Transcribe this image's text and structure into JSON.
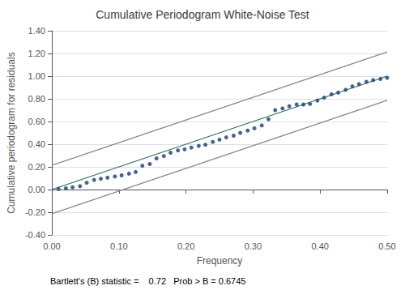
{
  "chart_data": {
    "type": "scatter",
    "title": "Cumulative Periodogram White-Noise Test",
    "xlabel": "Frequency",
    "ylabel": "Cumulative periodogram for residuals",
    "annotation": "Bartlett's (B) statistic =    0.72   Prob > B = 0.6745",
    "xlim": [
      0,
      0.5
    ],
    "ylim": [
      -0.4,
      1.4
    ],
    "xticks": [
      {
        "value": 0,
        "label": "0.00"
      },
      {
        "value": 0.1,
        "label": "0.10"
      },
      {
        "value": 0.2,
        "label": "0.20"
      },
      {
        "value": 0.3,
        "label": "0.30"
      },
      {
        "value": 0.4,
        "label": "0.40"
      },
      {
        "value": 0.5,
        "label": "0.50"
      }
    ],
    "yticks": [
      {
        "value": -0.4,
        "label": "-0.40"
      },
      {
        "value": -0.2,
        "label": "-0.20"
      },
      {
        "value": 0,
        "label": "0.00"
      },
      {
        "value": 0.2,
        "label": "0.20"
      },
      {
        "value": 0.4,
        "label": "0.40"
      },
      {
        "value": 0.6,
        "label": "0.60"
      },
      {
        "value": 0.8,
        "label": "0.80"
      },
      {
        "value": 1,
        "label": "1.00"
      },
      {
        "value": 1.2,
        "label": "1.20"
      },
      {
        "value": 1.4,
        "label": "1.40"
      }
    ],
    "grid": true,
    "series": [
      {
        "type": "line",
        "color": "#888888",
        "x": [
          0,
          0.5
        ],
        "values": [
          0.213,
          1.213
        ]
      },
      {
        "type": "line",
        "color": "#888888",
        "x": [
          0,
          0.5
        ],
        "values": [
          -0.213,
          0.787
        ]
      },
      {
        "type": "line",
        "color": "#2e7060",
        "x": [
          0,
          0.5
        ],
        "values": [
          0,
          1.0
        ]
      },
      {
        "type": "scatter",
        "color": "#1b3d6e",
        "x": [
          0.01,
          0.021,
          0.031,
          0.042,
          0.052,
          0.063,
          0.073,
          0.083,
          0.094,
          0.104,
          0.115,
          0.125,
          0.135,
          0.146,
          0.156,
          0.167,
          0.177,
          0.188,
          0.198,
          0.208,
          0.219,
          0.229,
          0.24,
          0.25,
          0.26,
          0.271,
          0.281,
          0.292,
          0.302,
          0.313,
          0.323,
          0.333,
          0.344,
          0.354,
          0.365,
          0.375,
          0.385,
          0.396,
          0.406,
          0.417,
          0.427,
          0.438,
          0.448,
          0.458,
          0.469,
          0.479,
          0.49,
          0.5
        ],
        "values": [
          0.005,
          0.012,
          0.02,
          0.03,
          0.06,
          0.085,
          0.095,
          0.105,
          0.115,
          0.125,
          0.14,
          0.155,
          0.21,
          0.225,
          0.275,
          0.295,
          0.325,
          0.345,
          0.355,
          0.37,
          0.385,
          0.395,
          0.42,
          0.44,
          0.46,
          0.475,
          0.5,
          0.52,
          0.54,
          0.565,
          0.62,
          0.7,
          0.715,
          0.735,
          0.75,
          0.75,
          0.755,
          0.785,
          0.81,
          0.84,
          0.855,
          0.88,
          0.91,
          0.93,
          0.95,
          0.965,
          0.975,
          0.985
        ]
      }
    ]
  }
}
